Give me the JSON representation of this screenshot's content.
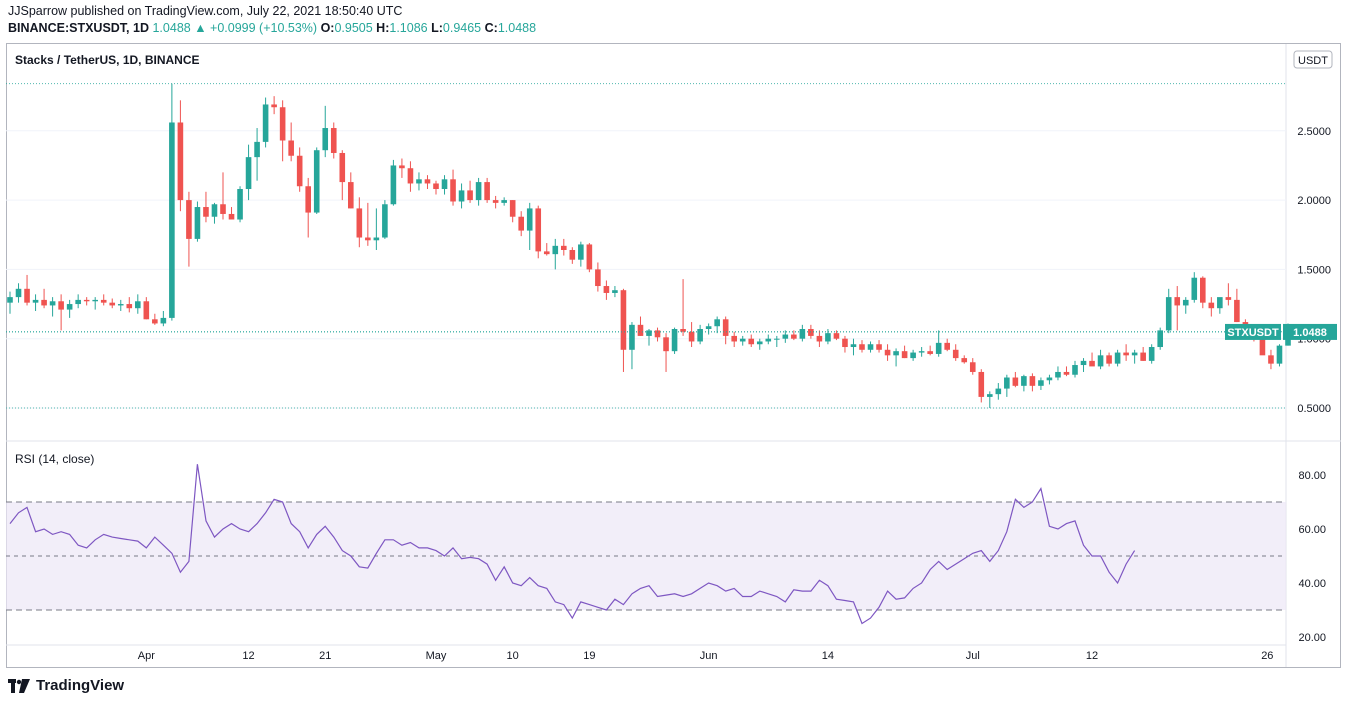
{
  "header": {
    "published": "JJSparrow published on TradingView.com, July 22, 2021 18:50:40 UTC",
    "symbol": "BINANCE:STXUSDT, 1D",
    "last": "1.0488",
    "change": "▲ +0.0999 (+10.53%)",
    "o_label": "O:",
    "o": "0.9505",
    "h_label": "H:",
    "h": "1.1086",
    "l_label": "L:",
    "l": "0.9465",
    "c_label": "C:",
    "c": "1.0488"
  },
  "footer": {
    "brand": "TradingView"
  },
  "colors": {
    "up": "#26a69a",
    "down": "#ef5350",
    "rsi": "#7e57c2",
    "rsi_band": "#ede7f6"
  },
  "chart_data": [
    {
      "type": "candlestick",
      "title": "Stacks / TetherUS, 1D, BINANCE",
      "currency_label": "USDT",
      "last_price_label": "STXUSDT",
      "last_price": "1.0488",
      "y_ticks": [
        "0.5000",
        "1.0000",
        "1.5000",
        "2.0000",
        "2.5000"
      ],
      "ylim": [
        0.35,
        2.9
      ],
      "x_ticks": [
        "Apr",
        "12",
        "21",
        "May",
        "10",
        "19",
        "Jun",
        "14",
        "Jul",
        "12",
        "26"
      ],
      "reference_levels": [
        2.84,
        1.05,
        0.5
      ],
      "ohlc": [
        [
          1.26,
          1.34,
          1.18,
          1.3
        ],
        [
          1.3,
          1.4,
          1.26,
          1.36
        ],
        [
          1.36,
          1.46,
          1.24,
          1.26
        ],
        [
          1.26,
          1.32,
          1.2,
          1.28
        ],
        [
          1.28,
          1.36,
          1.22,
          1.24
        ],
        [
          1.24,
          1.3,
          1.16,
          1.27
        ],
        [
          1.27,
          1.32,
          1.06,
          1.21
        ],
        [
          1.21,
          1.28,
          1.15,
          1.25
        ],
        [
          1.25,
          1.32,
          1.22,
          1.28
        ],
        [
          1.28,
          1.3,
          1.24,
          1.27
        ],
        [
          1.27,
          1.3,
          1.21,
          1.28
        ],
        [
          1.28,
          1.32,
          1.24,
          1.26
        ],
        [
          1.26,
          1.29,
          1.22,
          1.24
        ],
        [
          1.24,
          1.28,
          1.2,
          1.25
        ],
        [
          1.25,
          1.3,
          1.19,
          1.22
        ],
        [
          1.22,
          1.32,
          1.18,
          1.27
        ],
        [
          1.27,
          1.3,
          1.14,
          1.14
        ],
        [
          1.14,
          1.18,
          1.1,
          1.11
        ],
        [
          1.11,
          1.2,
          1.09,
          1.15
        ],
        [
          1.15,
          2.84,
          1.13,
          2.56
        ],
        [
          2.56,
          2.72,
          1.92,
          2.0
        ],
        [
          2.0,
          2.06,
          1.52,
          1.72
        ],
        [
          1.72,
          1.99,
          1.7,
          1.95
        ],
        [
          1.95,
          2.06,
          1.84,
          1.88
        ],
        [
          1.88,
          1.98,
          1.83,
          1.97
        ],
        [
          1.97,
          2.2,
          1.86,
          1.9
        ],
        [
          1.9,
          1.95,
          1.86,
          1.86
        ],
        [
          1.86,
          2.1,
          1.84,
          2.08
        ],
        [
          2.08,
          2.4,
          2.0,
          2.31
        ],
        [
          2.31,
          2.52,
          2.14,
          2.42
        ],
        [
          2.42,
          2.74,
          2.38,
          2.69
        ],
        [
          2.69,
          2.75,
          2.62,
          2.67
        ],
        [
          2.67,
          2.72,
          2.28,
          2.43
        ],
        [
          2.43,
          2.56,
          2.28,
          2.32
        ],
        [
          2.32,
          2.38,
          2.06,
          2.1
        ],
        [
          2.1,
          2.16,
          1.73,
          1.91
        ],
        [
          1.91,
          2.38,
          1.9,
          2.36
        ],
        [
          2.36,
          2.68,
          2.31,
          2.52
        ],
        [
          2.52,
          2.56,
          2.3,
          2.34
        ],
        [
          2.34,
          2.36,
          2.0,
          2.13
        ],
        [
          2.13,
          2.2,
          1.94,
          1.94
        ],
        [
          1.94,
          2.02,
          1.66,
          1.73
        ],
        [
          1.73,
          1.98,
          1.67,
          1.71
        ],
        [
          1.71,
          1.94,
          1.64,
          1.73
        ],
        [
          1.73,
          2.0,
          1.72,
          1.97
        ],
        [
          1.97,
          2.29,
          1.96,
          2.25
        ],
        [
          2.25,
          2.3,
          2.16,
          2.23
        ],
        [
          2.23,
          2.28,
          2.06,
          2.12
        ],
        [
          2.12,
          2.2,
          2.07,
          2.15
        ],
        [
          2.15,
          2.18,
          2.08,
          2.12
        ],
        [
          2.12,
          2.14,
          2.04,
          2.08
        ],
        [
          2.08,
          2.18,
          2.04,
          2.15
        ],
        [
          2.15,
          2.22,
          1.96,
          1.99
        ],
        [
          1.99,
          2.12,
          1.94,
          2.07
        ],
        [
          2.07,
          2.14,
          1.98,
          2.0
        ],
        [
          2.0,
          2.16,
          1.96,
          2.13
        ],
        [
          2.13,
          2.16,
          1.98,
          2.0
        ],
        [
          2.0,
          2.03,
          1.94,
          1.98
        ],
        [
          1.98,
          2.02,
          1.96,
          2.0
        ],
        [
          2.0,
          2.0,
          1.84,
          1.88
        ],
        [
          1.88,
          1.92,
          1.74,
          1.78
        ],
        [
          1.78,
          1.98,
          1.64,
          1.94
        ],
        [
          1.94,
          1.96,
          1.58,
          1.63
        ],
        [
          1.63,
          1.69,
          1.6,
          1.61
        ],
        [
          1.61,
          1.72,
          1.5,
          1.67
        ],
        [
          1.67,
          1.72,
          1.6,
          1.64
        ],
        [
          1.64,
          1.66,
          1.54,
          1.57
        ],
        [
          1.57,
          1.7,
          1.52,
          1.68
        ],
        [
          1.68,
          1.69,
          1.48,
          1.5
        ],
        [
          1.5,
          1.55,
          1.34,
          1.38
        ],
        [
          1.38,
          1.42,
          1.28,
          1.33
        ],
        [
          1.33,
          1.38,
          1.3,
          1.35
        ],
        [
          1.35,
          1.36,
          0.76,
          0.92
        ],
        [
          0.92,
          1.12,
          0.78,
          1.1
        ],
        [
          1.1,
          1.16,
          1.02,
          1.02
        ],
        [
          1.02,
          1.07,
          0.95,
          1.06
        ],
        [
          1.06,
          1.08,
          0.98,
          1.01
        ],
        [
          1.01,
          1.04,
          0.76,
          0.91
        ],
        [
          0.91,
          1.08,
          0.89,
          1.07
        ],
        [
          1.07,
          1.43,
          1.02,
          1.05
        ],
        [
          1.05,
          1.12,
          0.94,
          0.98
        ],
        [
          0.98,
          1.1,
          0.96,
          1.07
        ],
        [
          1.07,
          1.11,
          1.03,
          1.09
        ],
        [
          1.09,
          1.16,
          1.04,
          1.14
        ],
        [
          1.14,
          1.16,
          0.96,
          1.02
        ],
        [
          1.02,
          1.05,
          0.94,
          0.98
        ],
        [
          0.98,
          1.02,
          0.95,
          1.0
        ],
        [
          1.0,
          1.03,
          0.94,
          0.96
        ],
        [
          0.96,
          1.0,
          0.92,
          0.98
        ],
        [
          0.98,
          1.03,
          0.96,
          1.0
        ],
        [
          1.0,
          1.02,
          0.94,
          1.0
        ],
        [
          1.0,
          1.06,
          0.97,
          1.03
        ],
        [
          1.03,
          1.06,
          0.99,
          1.0
        ],
        [
          1.0,
          1.1,
          0.98,
          1.07
        ],
        [
          1.07,
          1.1,
          1.0,
          1.02
        ],
        [
          1.02,
          1.06,
          0.94,
          0.98
        ],
        [
          0.98,
          1.07,
          0.96,
          1.04
        ],
        [
          1.04,
          1.06,
          0.99,
          1.0
        ],
        [
          1.0,
          1.02,
          0.9,
          0.94
        ],
        [
          0.94,
          1.0,
          0.88,
          0.96
        ],
        [
          0.96,
          0.99,
          0.9,
          0.92
        ],
        [
          0.92,
          0.98,
          0.9,
          0.96
        ],
        [
          0.96,
          0.99,
          0.9,
          0.92
        ],
        [
          0.92,
          0.96,
          0.84,
          0.88
        ],
        [
          0.88,
          0.93,
          0.8,
          0.91
        ],
        [
          0.91,
          0.95,
          0.86,
          0.86
        ],
        [
          0.86,
          0.92,
          0.84,
          0.9
        ],
        [
          0.9,
          0.94,
          0.87,
          0.91
        ],
        [
          0.91,
          0.95,
          0.88,
          0.89
        ],
        [
          0.89,
          1.06,
          0.87,
          0.97
        ],
        [
          0.97,
          1.0,
          0.91,
          0.92
        ],
        [
          0.92,
          0.96,
          0.84,
          0.86
        ],
        [
          0.86,
          0.88,
          0.82,
          0.83
        ],
        [
          0.83,
          0.86,
          0.74,
          0.76
        ],
        [
          0.76,
          0.78,
          0.54,
          0.58
        ],
        [
          0.58,
          0.62,
          0.5,
          0.6
        ],
        [
          0.6,
          0.68,
          0.56,
          0.64
        ],
        [
          0.64,
          0.74,
          0.58,
          0.72
        ],
        [
          0.72,
          0.76,
          0.65,
          0.66
        ],
        [
          0.66,
          0.74,
          0.62,
          0.73
        ],
        [
          0.73,
          0.75,
          0.62,
          0.66
        ],
        [
          0.66,
          0.72,
          0.63,
          0.7
        ],
        [
          0.7,
          0.74,
          0.67,
          0.72
        ],
        [
          0.72,
          0.8,
          0.7,
          0.76
        ],
        [
          0.76,
          0.8,
          0.73,
          0.74
        ],
        [
          0.74,
          0.84,
          0.72,
          0.81
        ],
        [
          0.81,
          0.86,
          0.76,
          0.84
        ],
        [
          0.84,
          0.9,
          0.82,
          0.8
        ],
        [
          0.8,
          0.92,
          0.78,
          0.88
        ],
        [
          0.88,
          0.9,
          0.8,
          0.82
        ],
        [
          0.82,
          0.92,
          0.8,
          0.9
        ],
        [
          0.9,
          0.96,
          0.84,
          0.88
        ],
        [
          0.88,
          0.92,
          0.82,
          0.9
        ],
        [
          0.9,
          0.94,
          0.84,
          0.84
        ],
        [
          0.84,
          0.96,
          0.82,
          0.94
        ],
        [
          0.94,
          1.08,
          0.92,
          1.06
        ],
        [
          1.06,
          1.36,
          1.04,
          1.3
        ],
        [
          1.3,
          1.38,
          1.06,
          1.24
        ],
        [
          1.24,
          1.3,
          1.18,
          1.28
        ],
        [
          1.28,
          1.48,
          1.26,
          1.44
        ],
        [
          1.44,
          1.45,
          1.22,
          1.26
        ],
        [
          1.26,
          1.3,
          1.16,
          1.22
        ],
        [
          1.22,
          1.28,
          1.18,
          1.3
        ],
        [
          1.3,
          1.4,
          1.24,
          1.28
        ],
        [
          1.28,
          1.36,
          1.12,
          1.12
        ],
        [
          1.12,
          1.14,
          1.04,
          1.06
        ],
        [
          1.06,
          1.1,
          0.98,
          1.0
        ],
        [
          1.0,
          1.04,
          0.9,
          0.88
        ],
        [
          0.88,
          0.92,
          0.78,
          0.82
        ],
        [
          0.82,
          0.96,
          0.8,
          0.95
        ],
        [
          0.95,
          1.11,
          0.95,
          1.05
        ]
      ]
    },
    {
      "type": "line",
      "title": "RSI (14, close)",
      "y_ticks": [
        "20.00",
        "40.00",
        "60.00",
        "80.00"
      ],
      "ylim": [
        18,
        88
      ],
      "bands": [
        30,
        50,
        70
      ],
      "values": [
        62,
        66,
        68,
        59,
        60,
        58,
        59,
        58,
        54,
        53,
        56,
        58,
        57,
        56.5,
        56,
        55.5,
        53,
        57,
        54,
        51,
        44,
        48,
        84,
        63,
        57,
        60,
        62,
        60,
        59,
        62,
        66,
        71,
        70,
        62,
        59,
        53,
        58,
        61,
        57,
        52,
        50,
        46,
        45.5,
        51,
        56,
        56,
        54,
        55,
        53,
        53,
        52,
        50,
        53,
        49,
        49.5,
        49,
        47,
        41,
        46,
        40,
        39,
        42,
        39,
        38,
        33,
        32,
        27,
        33,
        32,
        31,
        30,
        34,
        32,
        36,
        38,
        39,
        35,
        35.5,
        36,
        35,
        36,
        38,
        40,
        39,
        37,
        38,
        35,
        35,
        37,
        36,
        35,
        33,
        37.5,
        37,
        37,
        41,
        39,
        34,
        33.5,
        33,
        25,
        27,
        31,
        37,
        34,
        34.5,
        38,
        40,
        45,
        48,
        45,
        47,
        49,
        51,
        52,
        48,
        52,
        59,
        71,
        68,
        70,
        75,
        61,
        60,
        62,
        63,
        54,
        50,
        50,
        44,
        40,
        47,
        52
      ]
    }
  ]
}
